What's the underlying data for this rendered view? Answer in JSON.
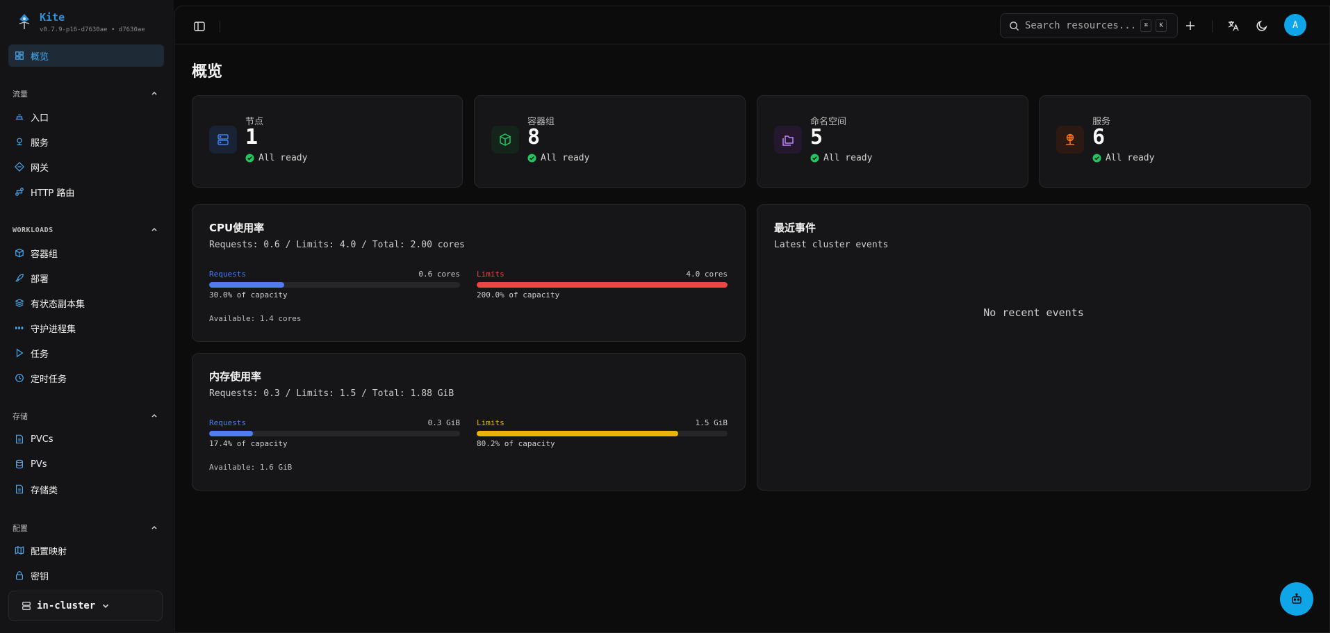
{
  "app": {
    "name": "Kite",
    "version": "v0.7.9-p16-d7630ae • d7630ae"
  },
  "sidebar": {
    "overview": {
      "label": "概览",
      "icon": "dashboard-icon"
    },
    "sections": [
      {
        "title": "流量",
        "items": [
          {
            "label": "入口",
            "icon": "ingress-icon"
          },
          {
            "label": "服务",
            "icon": "service-icon"
          },
          {
            "label": "网关",
            "icon": "gateway-icon"
          },
          {
            "label": "HTTP 路由",
            "icon": "route-icon"
          }
        ]
      },
      {
        "title": "WORKLOADS",
        "items": [
          {
            "label": "容器组",
            "icon": "box-icon"
          },
          {
            "label": "部署",
            "icon": "rocket-icon"
          },
          {
            "label": "有状态副本集",
            "icon": "layers-icon"
          },
          {
            "label": "守护进程集",
            "icon": "daemon-icon"
          },
          {
            "label": "任务",
            "icon": "play-icon"
          },
          {
            "label": "定时任务",
            "icon": "clock-icon"
          }
        ]
      },
      {
        "title": "存储",
        "items": [
          {
            "label": "PVCs",
            "icon": "file-icon"
          },
          {
            "label": "PVs",
            "icon": "database-icon"
          },
          {
            "label": "存储类",
            "icon": "file-icon"
          }
        ]
      },
      {
        "title": "配置",
        "items": [
          {
            "label": "配置映射",
            "icon": "map-icon"
          },
          {
            "label": "密钥",
            "icon": "lock-icon"
          }
        ]
      }
    ],
    "cluster": "in-cluster"
  },
  "topbar": {
    "search_placeholder": "Search resources...",
    "kbd_cmd": "⌘",
    "kbd_k": "K",
    "avatar": "A"
  },
  "page": {
    "title": "概览"
  },
  "stats": [
    {
      "label": "节点",
      "value": "1",
      "status": "All ready",
      "icon": "server-icon",
      "color": "#3b82f6",
      "bg": "#1a2236"
    },
    {
      "label": "容器组",
      "value": "8",
      "status": "All ready",
      "icon": "box-icon",
      "color": "#22c55e",
      "bg": "#14241a"
    },
    {
      "label": "命名空间",
      "value": "5",
      "status": "All ready",
      "icon": "folders-icon",
      "color": "#c084fc",
      "bg": "#24182f"
    },
    {
      "label": "服务",
      "value": "6",
      "status": "All ready",
      "icon": "network-icon",
      "color": "#f97316",
      "bg": "#2c1a12"
    }
  ],
  "cpu": {
    "title": "CPU使用率",
    "subtitle": "Requests: 0.6 / Limits: 4.0 / Total: 2.00 cores",
    "requests": {
      "label": "Requests",
      "value": "0.6 cores",
      "capacity": "30.0% of capacity",
      "fill_pct": 30.0,
      "color": "#4f7cf0"
    },
    "limits": {
      "label": "Limits",
      "value": "4.0 cores",
      "capacity": "200.0% of capacity",
      "fill_pct": 100,
      "color": "#ef4444"
    },
    "available": "Available: 1.4 cores"
  },
  "memory": {
    "title": "内存使用率",
    "subtitle": "Requests: 0.3 / Limits: 1.5 / Total: 1.88 GiB",
    "requests": {
      "label": "Requests",
      "value": "0.3 GiB",
      "capacity": "17.4% of capacity",
      "fill_pct": 17.4,
      "color": "#4f7cf0"
    },
    "limits": {
      "label": "Limits",
      "value": "1.5 GiB",
      "capacity": "80.2% of capacity",
      "fill_pct": 80.2,
      "color": "#eab308"
    },
    "available": "Available: 1.6 GiB"
  },
  "events": {
    "title": "最近事件",
    "subtitle": "Latest cluster events",
    "empty": "No recent events"
  }
}
